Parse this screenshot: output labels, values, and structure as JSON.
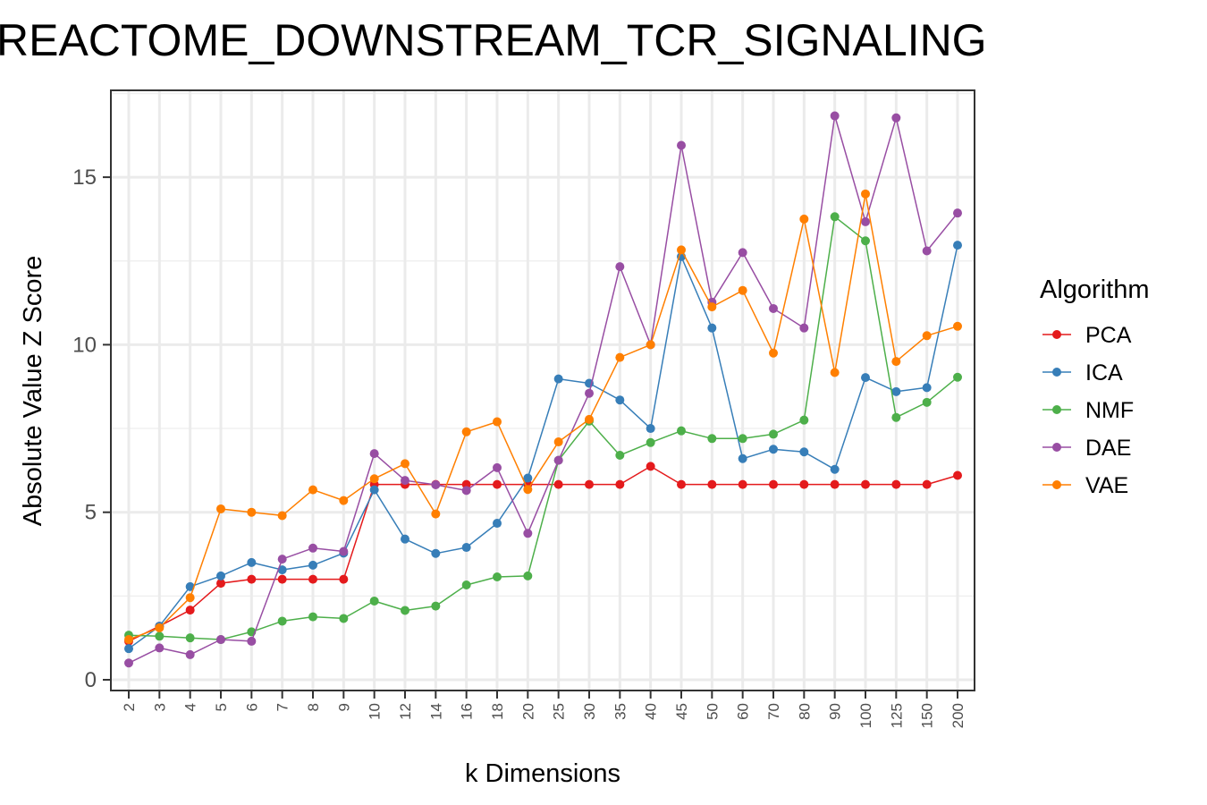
{
  "chart_data": {
    "type": "line",
    "title": "REACTOME_DOWNSTREAM_TCR_SIGNALING",
    "xlabel": "k Dimensions",
    "ylabel": "Absolute Value Z Score",
    "categories": [
      "2",
      "3",
      "4",
      "5",
      "6",
      "7",
      "8",
      "9",
      "10",
      "12",
      "14",
      "16",
      "18",
      "20",
      "25",
      "30",
      "35",
      "40",
      "45",
      "50",
      "60",
      "70",
      "80",
      "90",
      "100",
      "125",
      "150",
      "200"
    ],
    "ylim": [
      0,
      17.5
    ],
    "yticks": [
      0,
      5,
      10,
      15
    ],
    "grid": true,
    "legend": {
      "title": "Algorithm",
      "position": "right"
    },
    "series": [
      {
        "name": "PCA",
        "color": "#e41a1c",
        "values": [
          1.15,
          1.6,
          2.08,
          2.88,
          3.0,
          3.0,
          3.0,
          3.0,
          5.83,
          5.83,
          5.83,
          5.83,
          5.83,
          5.83,
          5.83,
          5.83,
          5.83,
          6.37,
          5.83,
          5.83,
          5.83,
          5.83,
          5.83,
          5.83,
          5.83,
          5.83,
          5.83,
          6.1
        ]
      },
      {
        "name": "ICA",
        "color": "#377eb8",
        "values": [
          0.93,
          1.6,
          2.78,
          3.1,
          3.5,
          3.28,
          3.42,
          3.78,
          5.67,
          4.2,
          3.77,
          3.95,
          4.67,
          6.02,
          8.98,
          8.85,
          8.35,
          7.5,
          12.63,
          10.5,
          6.6,
          6.88,
          6.8,
          6.28,
          9.02,
          8.6,
          8.72,
          12.97
        ]
      },
      {
        "name": "NMF",
        "color": "#4daf4a",
        "values": [
          1.33,
          1.3,
          1.25,
          1.2,
          1.43,
          1.75,
          1.88,
          1.83,
          2.35,
          2.07,
          2.2,
          2.83,
          3.07,
          3.1,
          6.55,
          7.72,
          6.7,
          7.08,
          7.43,
          7.2,
          7.2,
          7.33,
          7.75,
          13.82,
          13.1,
          7.83,
          8.28,
          9.03
        ]
      },
      {
        "name": "DAE",
        "color": "#984ea3",
        "values": [
          0.5,
          0.95,
          0.75,
          1.2,
          1.15,
          3.6,
          3.93,
          3.83,
          6.75,
          5.95,
          5.82,
          5.65,
          6.33,
          4.37,
          6.55,
          8.55,
          12.33,
          10.0,
          15.95,
          11.27,
          12.75,
          11.08,
          10.5,
          16.83,
          13.67,
          16.77,
          12.8,
          13.93
        ]
      },
      {
        "name": "VAE",
        "color": "#ff7f00",
        "values": [
          1.2,
          1.55,
          2.45,
          5.1,
          5.0,
          4.9,
          5.67,
          5.35,
          6.0,
          6.45,
          4.95,
          7.4,
          7.7,
          5.68,
          7.1,
          7.77,
          9.62,
          10.0,
          12.83,
          11.13,
          11.62,
          9.75,
          13.75,
          9.17,
          14.5,
          9.5,
          10.27,
          10.55
        ]
      }
    ]
  }
}
